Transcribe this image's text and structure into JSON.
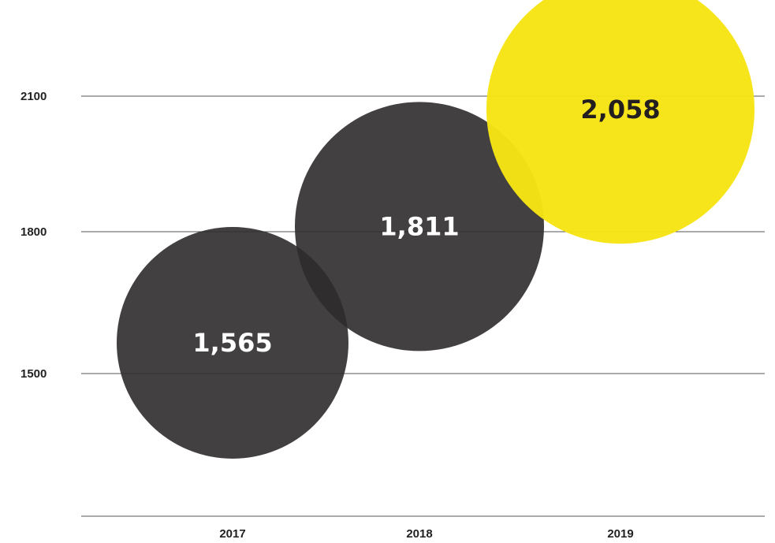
{
  "chart_data": {
    "type": "scatter",
    "title": "",
    "xlabel": "",
    "ylabel": "",
    "categories": [
      "2017",
      "2018",
      "2019"
    ],
    "values": [
      1565,
      1811,
      2058
    ],
    "value_labels": [
      "1,565",
      "1,811",
      "2,058"
    ],
    "y_ticks": [
      "2100",
      "1800",
      "1500"
    ],
    "y_tick_values": [
      2100,
      1800,
      1500
    ],
    "ylim": [
      1200,
      2100
    ],
    "grid": true,
    "legend": "none",
    "colors": {
      "default_bubble": "#2d2b2b",
      "highlight_bubble": "#f7e414",
      "default_label": "#ffffff",
      "highlight_label": "#231f20",
      "gridline": "#555555",
      "axis_text": "#222222"
    },
    "highlight_index": 2
  }
}
